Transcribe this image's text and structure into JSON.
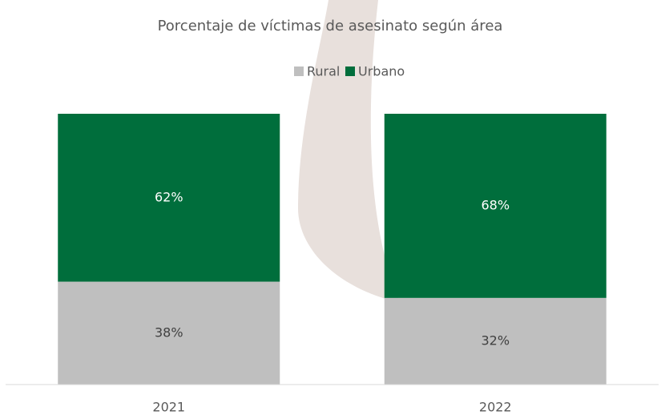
{
  "chart_data": {
    "type": "stacked_bar",
    "title": "Porcentaje de víctimas de asesinato según área",
    "categories": [
      "2021",
      "2022"
    ],
    "series": [
      {
        "name": "Rural",
        "color": "#bfbfbf",
        "values": [
          38,
          32
        ],
        "value_labels": [
          "38%",
          "32%"
        ]
      },
      {
        "name": "Urbano",
        "color": "#006e3c",
        "values": [
          62,
          68
        ],
        "value_labels": [
          "62%",
          "68%"
        ]
      }
    ],
    "ylim": [
      0,
      100
    ],
    "legend": "top"
  }
}
